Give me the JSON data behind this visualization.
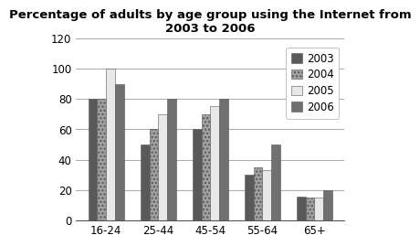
{
  "title": "Percentage of adults by age group using the Internet from\n2003 to 2006",
  "categories": [
    "16-24",
    "25-44",
    "45-54",
    "55-64",
    "65+"
  ],
  "years": [
    "2003",
    "2004",
    "2005",
    "2006"
  ],
  "values": {
    "2003": [
      80,
      50,
      60,
      30,
      16
    ],
    "2004": [
      80,
      60,
      70,
      35,
      15
    ],
    "2005": [
      100,
      70,
      75,
      33,
      15
    ],
    "2006": [
      90,
      80,
      80,
      50,
      20
    ]
  },
  "bar_colors": [
    "#595959",
    "#a0a0a0",
    "#e8e8e8",
    "#707070"
  ],
  "hatches": [
    "",
    "....",
    "",
    "==="
  ],
  "ylim": [
    0,
    120
  ],
  "yticks": [
    0,
    20,
    40,
    60,
    80,
    100,
    120
  ],
  "background_color": "#ffffff",
  "grid_color": "#aaaaaa",
  "title_fontsize": 9.5,
  "tick_fontsize": 8.5,
  "legend_fontsize": 8.5,
  "bar_width": 0.17
}
